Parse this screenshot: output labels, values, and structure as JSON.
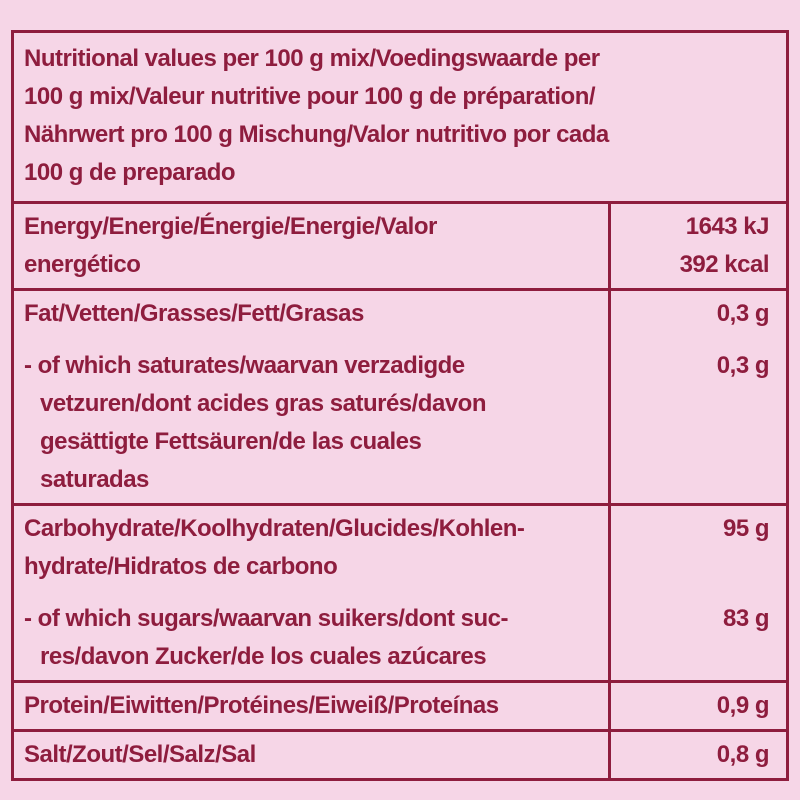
{
  "colors": {
    "background": "#f6d6e7",
    "accent": "#8e1d3e"
  },
  "header": {
    "text": "Nutritional values per 100 g mix/Voedingswaarde per\n100 g mix/Valeur nutritive pour 100 g de préparation/\nNährwert pro 100 g Mischung/Valor nutritivo por cada\n100 g de preparado"
  },
  "rows": {
    "energy": {
      "label": "Energy/Energie/Énergie/Energie/Valor\nenergético",
      "value": "1643 kJ\n392 kcal"
    },
    "fat": {
      "label": "Fat/Vetten/Grasses/Fett/Grasas",
      "value": "0,3 g"
    },
    "saturates": {
      "label": "- of which saturates/waarvan verzadigde\nvetzuren/dont acides gras saturés/davon\ngesättigte Fettsäuren/de las cuales\nsaturadas",
      "value": "0,3 g"
    },
    "carbohydrate": {
      "label": "Carbohydrate/Koolhydraten/Glucides/Kohlen-\nhydrate/Hidratos de carbono",
      "value": "95 g"
    },
    "sugars": {
      "label": "- of which sugars/waarvan suikers/dont suc-\nres/davon Zucker/de los cuales azúcares",
      "value": "83 g"
    },
    "protein": {
      "label": "Protein/Eiwitten/Protéines/Eiweiß/Proteínas",
      "value": "0,9 g"
    },
    "salt": {
      "label": "Salt/Zout/Sel/Salz/Sal",
      "value": "0,8 g"
    }
  }
}
